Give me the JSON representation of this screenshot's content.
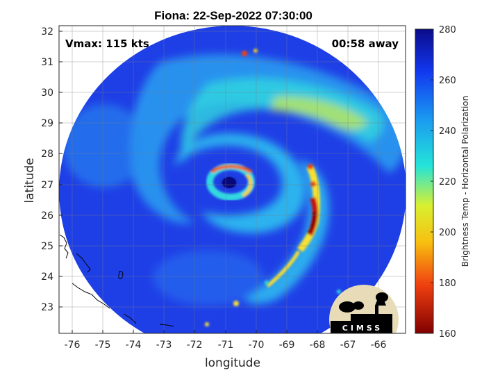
{
  "title": "Fiona: 22-Sep-2022 07:30:00",
  "vmax_text": "Vmax: 115 kts",
  "away_text": "00:58 away",
  "x_axis": {
    "label": "longitude",
    "ticks": [
      "-76",
      "-75",
      "-74",
      "-73",
      "-72",
      "-71",
      "-70",
      "-69",
      "-68",
      "-67",
      "-66"
    ]
  },
  "y_axis": {
    "label": "latitude",
    "ticks": [
      "32",
      "31",
      "30",
      "29",
      "28",
      "27",
      "26",
      "25",
      "24",
      "23"
    ]
  },
  "colorbar": {
    "label": "Brightness Temp - Horizontal Polarization",
    "ticks": [
      "280",
      "260",
      "240",
      "220",
      "200",
      "180",
      "160"
    ],
    "colors": [
      "#0b0b8a",
      "#1238f0",
      "#1a9cf0",
      "#24e4d8",
      "#d8f030",
      "#f8c010",
      "#f04010",
      "#800000"
    ]
  },
  "logo": {
    "text": "CIMSS"
  },
  "storm_eye": {
    "lon": -70.9,
    "lat": 27.05
  }
}
